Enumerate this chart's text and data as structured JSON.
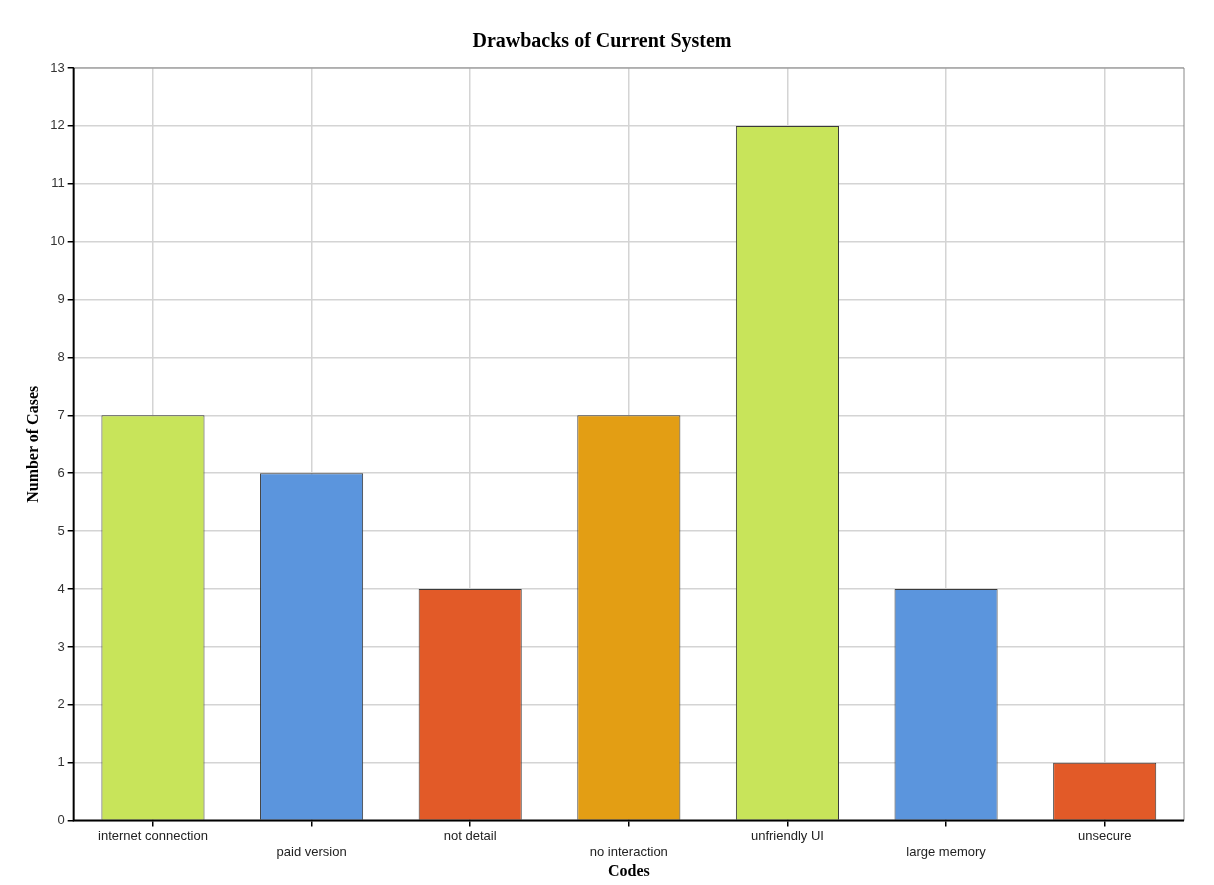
{
  "chart_data": {
    "type": "bar",
    "title": "Drawbacks of Current System",
    "xlabel": "Codes",
    "ylabel": "Number of Cases",
    "categories": [
      "internet connection",
      "paid version",
      "not detail",
      "no interaction",
      "unfriendly UI",
      "large memory",
      "unsecure"
    ],
    "values": [
      7,
      6,
      4,
      7,
      12,
      4,
      1
    ],
    "colors": [
      "#c8e45a",
      "#5b95dd",
      "#e25a28",
      "#e39e14",
      "#c8e45a",
      "#5b95dd",
      "#e25a28"
    ],
    "ylim": [
      0,
      13
    ],
    "yticks": [
      0,
      1,
      2,
      3,
      4,
      5,
      6,
      7,
      8,
      9,
      10,
      11,
      12,
      13
    ],
    "grid": true
  }
}
